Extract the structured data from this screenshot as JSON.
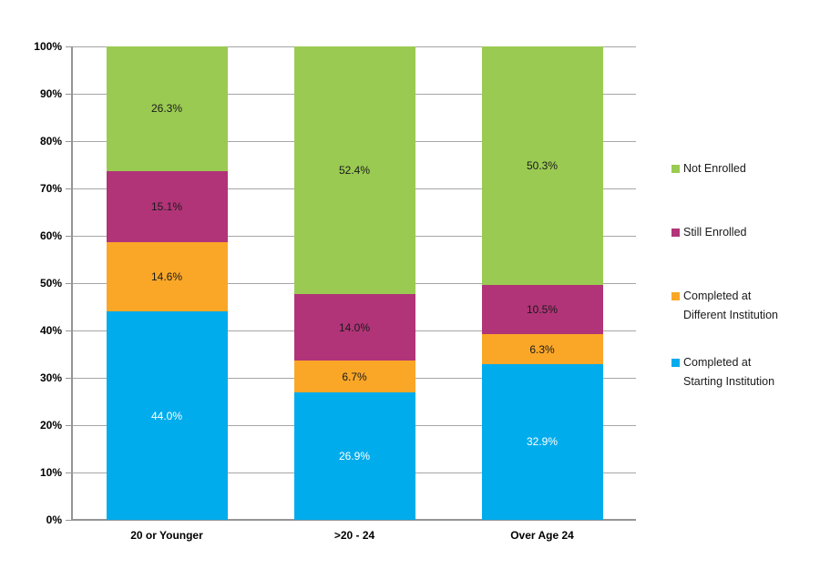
{
  "chart_data": {
    "type": "bar",
    "variant": "100%-stacked-column",
    "title": "",
    "xlabel": "",
    "ylabel": "",
    "categories": [
      "20 or Younger",
      ">20 - 24",
      "Over Age 24"
    ],
    "series": [
      {
        "name": "Completed at Starting Institution",
        "color": "#00ACEC",
        "label_color": "#ffffff",
        "values": [
          44.0,
          26.9,
          32.9
        ]
      },
      {
        "name": "Completed at Different Institution",
        "color": "#FAA728",
        "label_color": "#1a1a1a",
        "values": [
          14.6,
          6.7,
          6.3
        ]
      },
      {
        "name": "Still Enrolled",
        "color": "#B13478",
        "label_color": "#1a1a1a",
        "values": [
          15.1,
          14.0,
          10.5
        ]
      },
      {
        "name": "Not Enrolled",
        "color": "#9ACA52",
        "label_color": "#1a1a1a",
        "values": [
          26.3,
          52.4,
          50.3
        ]
      }
    ],
    "stack_order": "bottom-to-top",
    "data_label_format": "one-decimal-percent",
    "ylim": [
      0,
      100
    ],
    "y_tick_step": 10,
    "y_ticks": [
      "0%",
      "10%",
      "20%",
      "30%",
      "40%",
      "50%",
      "60%",
      "70%",
      "80%",
      "90%",
      "100%"
    ],
    "grid": true,
    "grid_color": "#a6a6a6",
    "axis_color": "#949494",
    "legend": {
      "position": "right",
      "items": [
        {
          "label": "Not Enrolled",
          "color": "#9ACA52"
        },
        {
          "label": "Still Enrolled",
          "color": "#B13478"
        },
        {
          "label": "Completed at\nDifferent Institution",
          "color": "#FAA728"
        },
        {
          "label": "Completed at\nStarting Institution",
          "color": "#00ACEC"
        }
      ]
    }
  }
}
